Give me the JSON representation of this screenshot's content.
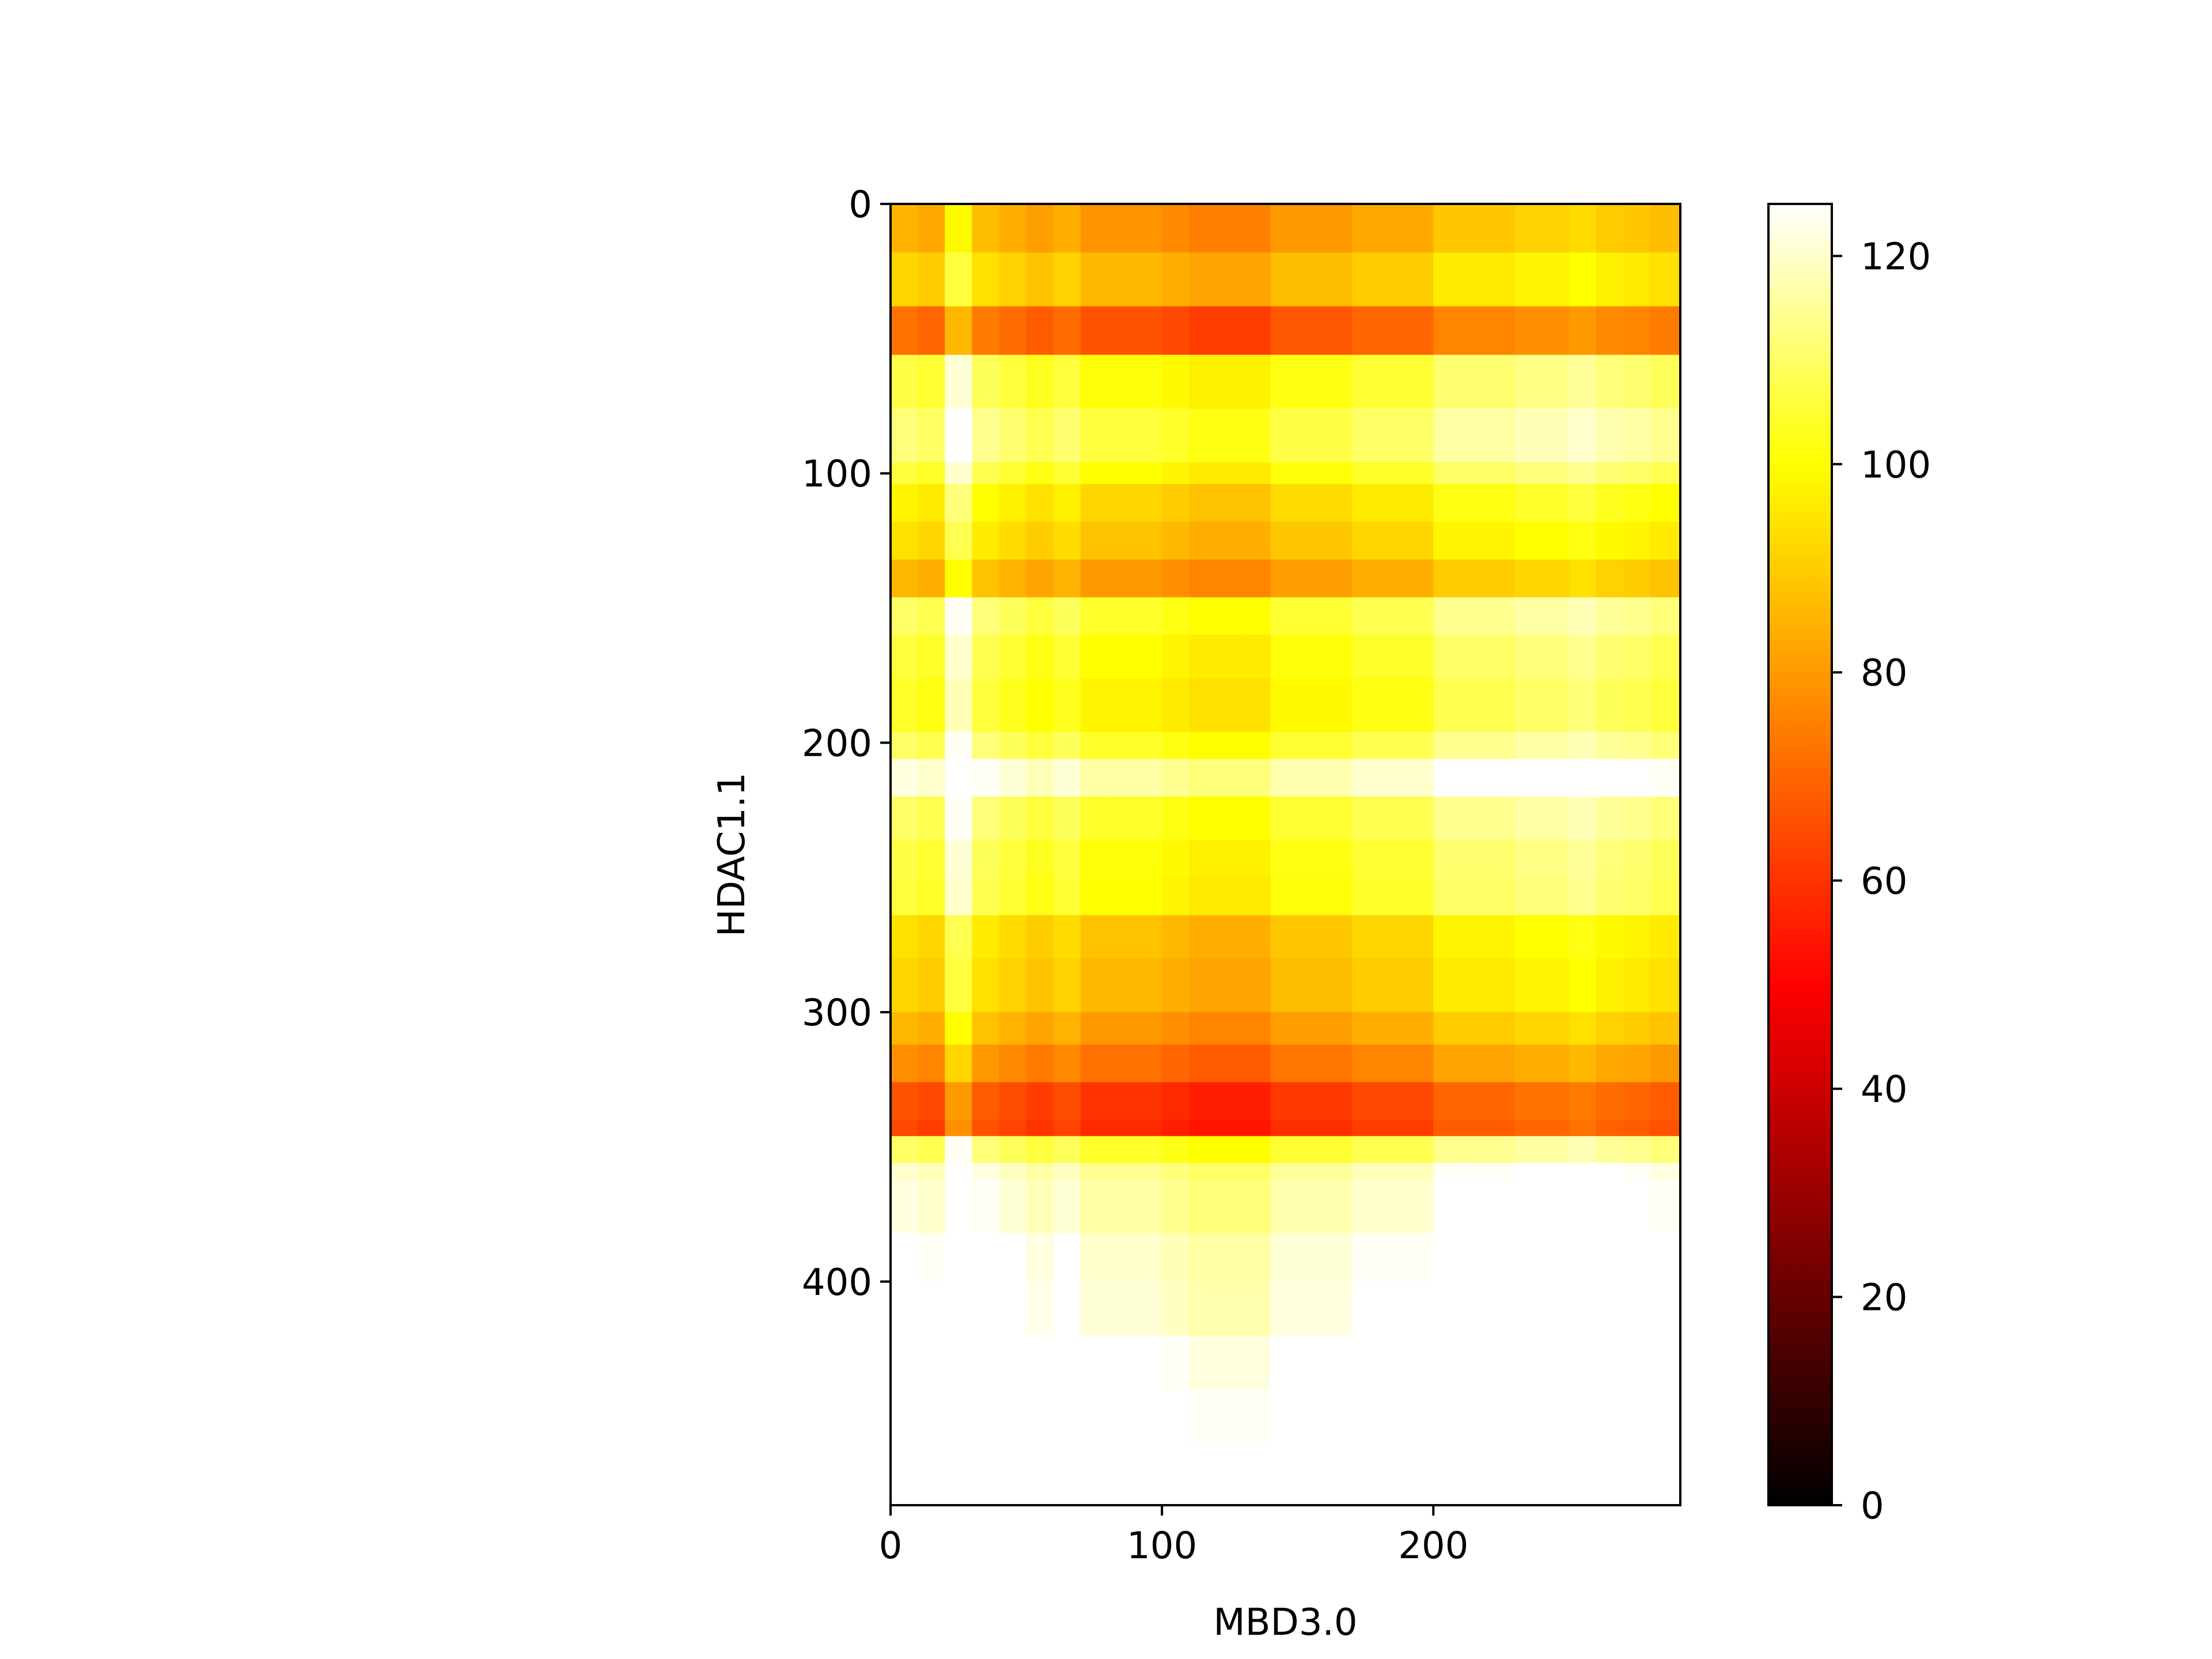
{
  "chart_data": {
    "type": "heatmap",
    "title": "",
    "xlabel": "MBD3.0",
    "ylabel": "HDAC1.1",
    "xlim": [
      0,
      291
    ],
    "ylim": [
      483,
      0
    ],
    "x_ticks": [
      0,
      100,
      200
    ],
    "y_ticks": [
      0,
      100,
      200,
      300,
      400
    ],
    "colormap": "hot",
    "colorbar": {
      "range": [
        0,
        125
      ],
      "ticks": [
        0,
        20,
        40,
        60,
        80,
        100,
        120
      ],
      "stops": [
        "#000000",
        "#800000",
        "#ff0000",
        "#ff8000",
        "#ffff00",
        "#ffffff"
      ]
    },
    "column_edges": [
      0,
      10,
      20,
      30,
      40,
      50,
      60,
      70,
      80,
      100,
      110,
      130,
      140,
      160,
      170,
      190,
      200,
      210,
      220,
      230,
      240,
      250,
      260,
      270,
      280,
      291
    ],
    "column_profile": [
      10,
      8,
      24,
      12,
      9,
      6,
      9,
      4,
      4,
      2,
      0,
      0,
      5,
      5,
      8,
      8,
      14,
      14,
      14,
      16,
      16,
      18,
      15,
      14,
      12
    ],
    "row_edges": [
      0,
      18,
      38,
      56,
      76,
      96,
      104,
      118,
      132,
      146,
      160,
      176,
      196,
      206,
      220,
      236,
      250,
      264,
      280,
      300,
      312,
      326,
      340,
      346,
      356,
      362,
      382,
      400,
      420,
      440,
      460,
      483
    ],
    "row_base": [
      75,
      82,
      62,
      97,
      102,
      96,
      88,
      84,
      76,
      100,
      96,
      94,
      100,
      112,
      100,
      97,
      96,
      84,
      82,
      76,
      68,
      56,
      54,
      100,
      110,
      112,
      116,
      117,
      122,
      124,
      125
    ]
  }
}
